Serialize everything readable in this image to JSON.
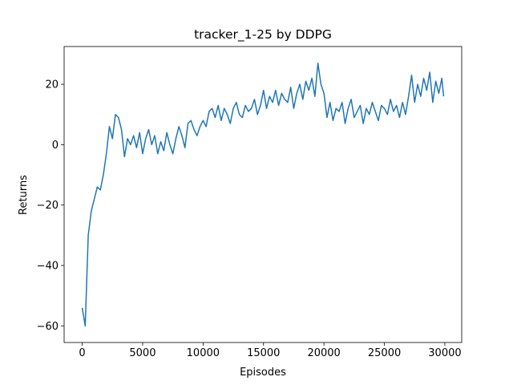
{
  "chart_data": {
    "type": "line",
    "title": "tracker_1-25 by DDPG",
    "xlabel": "Episodes",
    "ylabel": "Returns",
    "x": [
      0,
      250,
      500,
      750,
      1000,
      1250,
      1500,
      1750,
      2000,
      2250,
      2500,
      2750,
      3000,
      3250,
      3500,
      3750,
      4000,
      4250,
      4500,
      4750,
      5000,
      5250,
      5500,
      5750,
      6000,
      6250,
      6500,
      6750,
      7000,
      7250,
      7500,
      7750,
      8000,
      8250,
      8500,
      8750,
      9000,
      9250,
      9500,
      9750,
      10000,
      10250,
      10500,
      10750,
      11000,
      11250,
      11500,
      11750,
      12000,
      12250,
      12500,
      12750,
      13000,
      13250,
      13500,
      13750,
      14000,
      14250,
      14500,
      14750,
      15000,
      15250,
      15500,
      15750,
      16000,
      16250,
      16500,
      16750,
      17000,
      17250,
      17500,
      17750,
      18000,
      18250,
      18500,
      18750,
      19000,
      19250,
      19500,
      19750,
      20000,
      20250,
      20500,
      20750,
      21000,
      21250,
      21500,
      21750,
      22000,
      22250,
      22500,
      22750,
      23000,
      23250,
      23500,
      23750,
      24000,
      24250,
      24500,
      24750,
      25000,
      25250,
      25500,
      25750,
      26000,
      26250,
      26500,
      26750,
      27000,
      27250,
      27500,
      27750,
      28000,
      28250,
      28500,
      28750,
      29000,
      29250,
      29500,
      29750,
      29900
    ],
    "series": [
      {
        "name": "returns",
        "color": "#1f77b4",
        "values": [
          -54,
          -60,
          -30,
          -22,
          -18,
          -14,
          -15,
          -10,
          -3,
          6,
          2,
          10,
          9,
          5,
          -4,
          2,
          0,
          3,
          -1,
          4,
          -3,
          2,
          5,
          0,
          3,
          -3,
          1,
          -2,
          4,
          0,
          -3,
          2,
          6,
          3,
          -1,
          7,
          8,
          5,
          3,
          6,
          8,
          6,
          11,
          12,
          9,
          13,
          8,
          12,
          10,
          7,
          12,
          14,
          10,
          9,
          13,
          11,
          12,
          15,
          10,
          13,
          18,
          12,
          16,
          14,
          18,
          13,
          17,
          15,
          14,
          19,
          12,
          17,
          20,
          15,
          21,
          18,
          22,
          16,
          27,
          20,
          17,
          9,
          14,
          8,
          12,
          11,
          14,
          7,
          12,
          15,
          9,
          11,
          13,
          7,
          12,
          10,
          14,
          11,
          8,
          13,
          12,
          10,
          15,
          11,
          13,
          9,
          14,
          10,
          16,
          23,
          14,
          20,
          16,
          22,
          18,
          24,
          14,
          21,
          17,
          22,
          16
        ]
      }
    ],
    "xlim": [
      -1495,
      31395
    ],
    "ylim": [
      -65.5,
      32.5
    ],
    "xticks": [
      0,
      5000,
      10000,
      15000,
      20000,
      25000,
      30000
    ],
    "yticks": [
      {
        "value": -60,
        "label": "−60"
      },
      {
        "value": -40,
        "label": "−40"
      },
      {
        "value": -20,
        "label": "−20"
      },
      0,
      20
    ],
    "grid": false
  }
}
